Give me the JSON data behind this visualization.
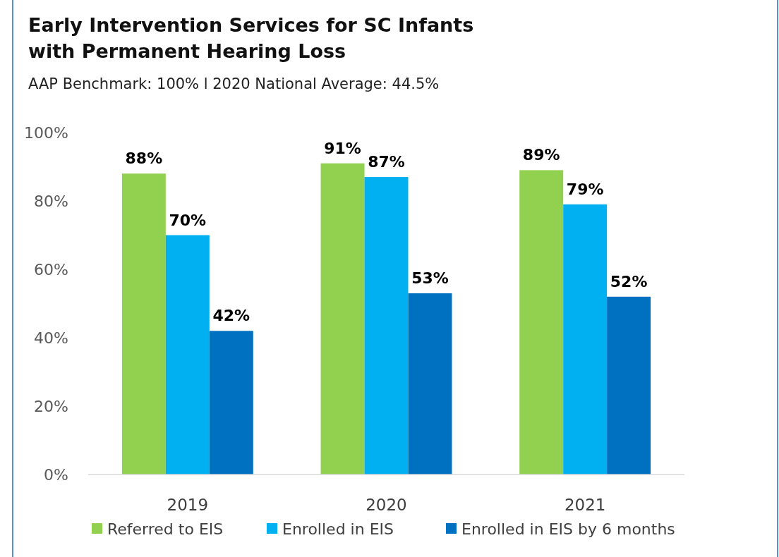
{
  "chart_data": {
    "type": "bar",
    "title": "Early Intervention Services for SC Infants with Permanent Hearing Loss",
    "subtitle": "AAP Benchmark: 100% l 2020 National Average: 44.5%",
    "categories": [
      "2019",
      "2020",
      "2021"
    ],
    "series": [
      {
        "name": "Referred to EIS",
        "color": "#92d050",
        "values": [
          88,
          91,
          89
        ]
      },
      {
        "name": "Enrolled in EIS",
        "color": "#00b0f0",
        "values": [
          70,
          87,
          79
        ]
      },
      {
        "name": "Enrolled in EIS by 6 months",
        "color": "#0070c0",
        "values": [
          42,
          53,
          52
        ]
      }
    ],
    "ylim": [
      0,
      100
    ],
    "yticks": [
      {
        "value": 0,
        "label": "0%"
      },
      {
        "value": 20,
        "label": "20%"
      },
      {
        "value": 40,
        "label": "40%"
      },
      {
        "value": 60,
        "label": "60%"
      },
      {
        "value": 80,
        "label": "80%"
      },
      {
        "value": 100,
        "label": "100%"
      }
    ],
    "value_labels": [
      [
        "88%",
        "91%",
        "89%"
      ],
      [
        "70%",
        "87%",
        "79%"
      ],
      [
        "42%",
        "53%",
        "52%"
      ]
    ],
    "grid": false,
    "legend": "bottom"
  }
}
